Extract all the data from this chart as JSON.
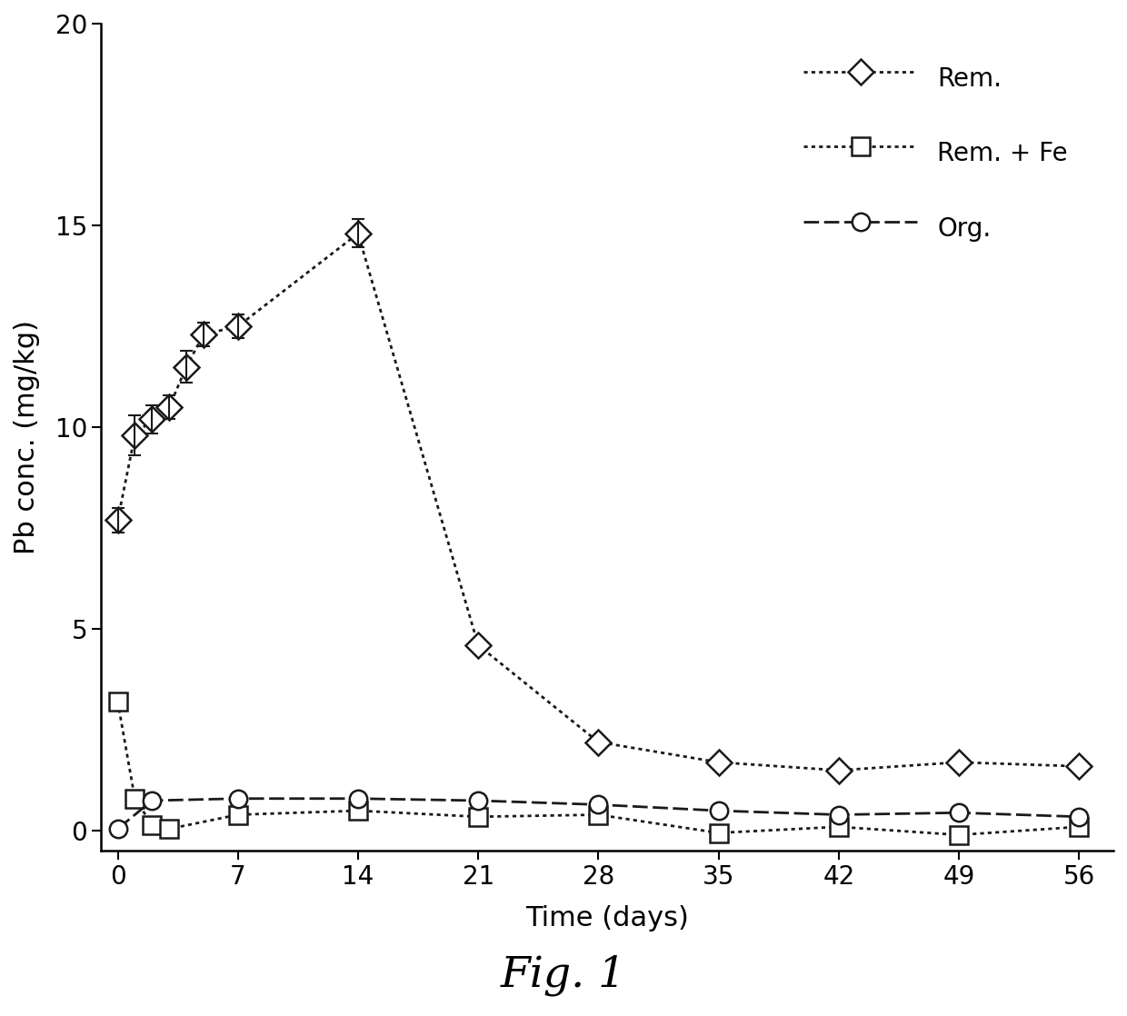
{
  "rem_x": [
    0,
    1,
    2,
    3,
    4,
    5,
    7,
    14,
    21,
    28,
    35,
    42,
    49,
    56
  ],
  "rem_y": [
    7.7,
    9.8,
    10.2,
    10.5,
    11.5,
    12.3,
    12.5,
    14.8,
    4.6,
    2.2,
    1.7,
    1.5,
    1.7,
    1.6
  ],
  "rem_yerr": [
    0.3,
    0.5,
    0.35,
    0.3,
    0.4,
    0.3,
    0.3,
    0.35,
    0.0,
    0.0,
    0.0,
    0.0,
    0.0,
    0.0
  ],
  "rem_fe_x": [
    0,
    1,
    2,
    3,
    7,
    14,
    21,
    28,
    35,
    42,
    49,
    56
  ],
  "rem_fe_y": [
    3.2,
    0.8,
    0.15,
    0.05,
    0.4,
    0.5,
    0.35,
    0.4,
    -0.05,
    0.1,
    -0.1,
    0.1
  ],
  "org_x": [
    0,
    2,
    7,
    14,
    21,
    28,
    35,
    42,
    49,
    56
  ],
  "org_y": [
    0.05,
    0.75,
    0.8,
    0.8,
    0.75,
    0.65,
    0.5,
    0.4,
    0.45,
    0.35
  ],
  "xlim": [
    -1,
    58
  ],
  "ylim": [
    -0.5,
    20
  ],
  "yticks": [
    0,
    5,
    10,
    15,
    20
  ],
  "xticks": [
    0,
    7,
    14,
    21,
    28,
    35,
    42,
    49,
    56
  ],
  "xlabel": "Time (days)",
  "ylabel": "Pb conc. (mg/kg)",
  "legend_labels": [
    "Rem.",
    "Rem. + Fe",
    "Org."
  ],
  "fig_label": "Fig. 1",
  "line_color": "#1a1a1a",
  "background_color": "#ffffff",
  "marker_size": 14,
  "linewidth": 2.0,
  "tick_labelsize": 20,
  "axis_labelsize": 22,
  "legend_fontsize": 20,
  "fig_label_fontsize": 34
}
